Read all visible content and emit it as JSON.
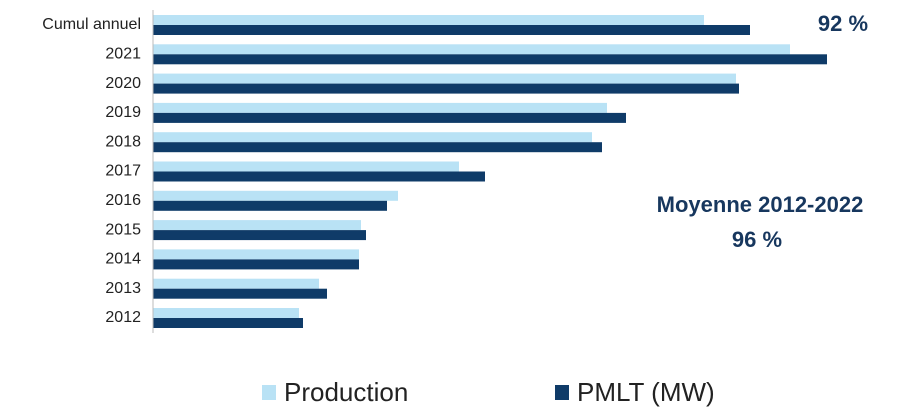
{
  "chart_data": {
    "type": "hbar",
    "categories": [
      "Cumul annuel",
      "2021",
      "2020",
      "2019",
      "2018",
      "2017",
      "2016",
      "2015",
      "2014",
      "2013",
      "2012"
    ],
    "series": [
      {
        "name": "Production",
        "color": "#b9e2f5",
        "values": [
          551,
          637,
          583,
          454,
          439,
          306,
          245,
          208,
          206,
          166,
          146
        ]
      },
      {
        "name": "PMLT (MW)",
        "color": "#0f3b68",
        "values": [
          597,
          674,
          586,
          473,
          449,
          332,
          234,
          213,
          206,
          174,
          150
        ]
      }
    ],
    "xlim": [
      0,
      700
    ],
    "annotations": [
      "92 %",
      "Moyenne  2012-2022",
      "96 %"
    ],
    "legend": "bottom"
  }
}
